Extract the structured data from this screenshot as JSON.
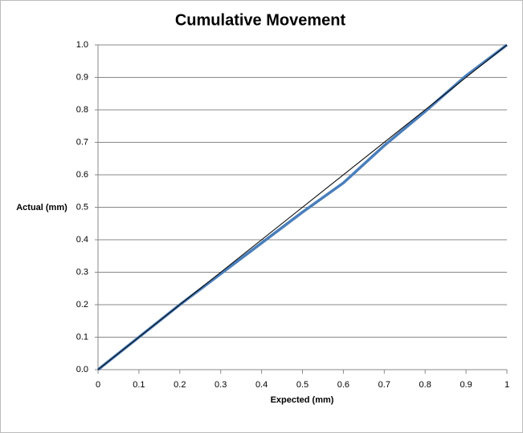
{
  "chart_data": {
    "type": "line",
    "title": "Cumulative Movement",
    "x_label": "Expected (mm)",
    "y_label": "Actual (mm)",
    "series": [
      {
        "color": "#4a7ebb",
        "width": 3.5,
        "x": [
          0,
          0.1,
          0.2,
          0.3,
          0.4,
          0.5,
          0.6,
          0.7,
          0.8,
          0.9,
          1
        ],
        "values": [
          0,
          0.1,
          0.2,
          0.295,
          0.39,
          0.485,
          0.575,
          0.69,
          0.795,
          0.905,
          1.0
        ]
      },
      {
        "color": "#000000",
        "width": 1,
        "x": [
          0,
          1
        ],
        "values": [
          0,
          1
        ]
      }
    ],
    "xlim": [
      0,
      1
    ],
    "xticks": [
      0,
      0.1,
      0.2,
      0.3,
      0.4,
      0.5,
      0.6,
      0.7,
      0.8,
      0.9,
      1
    ],
    "ylim": [
      0,
      1
    ],
    "yticks": [
      {
        "value": 0,
        "label": "0.0"
      },
      0.1,
      0.2,
      0.3,
      0.4,
      0.5,
      0.6,
      0.7,
      0.8,
      0.9,
      {
        "value": 1,
        "label": "1.0"
      }
    ],
    "grid": true
  }
}
